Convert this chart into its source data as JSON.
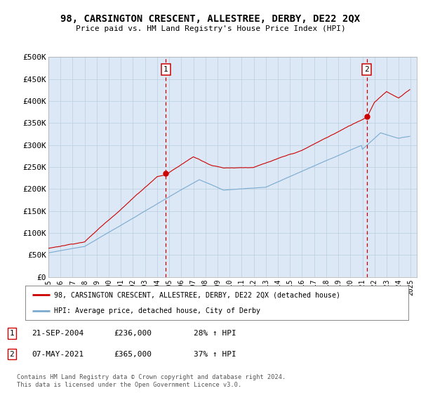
{
  "title": "98, CARSINGTON CRESCENT, ALLESTREE, DERBY, DE22 2QX",
  "subtitle": "Price paid vs. HM Land Registry's House Price Index (HPI)",
  "ylim": [
    0,
    500000
  ],
  "yticks": [
    0,
    50000,
    100000,
    150000,
    200000,
    250000,
    300000,
    350000,
    400000,
    450000,
    500000
  ],
  "ytick_labels": [
    "£0",
    "£50K",
    "£100K",
    "£150K",
    "£200K",
    "£250K",
    "£300K",
    "£350K",
    "£400K",
    "£450K",
    "£500K"
  ],
  "plot_bg_color": "#dce8f5",
  "line1_color": "#cc0000",
  "line2_color": "#7aaad0",
  "marker_color": "#cc0000",
  "ann_box_color": "#cc0000",
  "point1_x": 2004.72,
  "point1_y": 236000,
  "point2_x": 2021.36,
  "point2_y": 365000,
  "legend1_label": "98, CARSINGTON CRESCENT, ALLESTREE, DERBY, DE22 2QX (detached house)",
  "legend2_label": "HPI: Average price, detached house, City of Derby",
  "ann1_label": "1",
  "ann2_label": "2",
  "ann1_date": "21-SEP-2004",
  "ann1_price": "£236,000",
  "ann1_hpi": "28% ↑ HPI",
  "ann2_date": "07-MAY-2021",
  "ann2_price": "£365,000",
  "ann2_hpi": "37% ↑ HPI",
  "footer": "Contains HM Land Registry data © Crown copyright and database right 2024.\nThis data is licensed under the Open Government Licence v3.0.",
  "xmin": 1995,
  "xmax": 2025.5
}
